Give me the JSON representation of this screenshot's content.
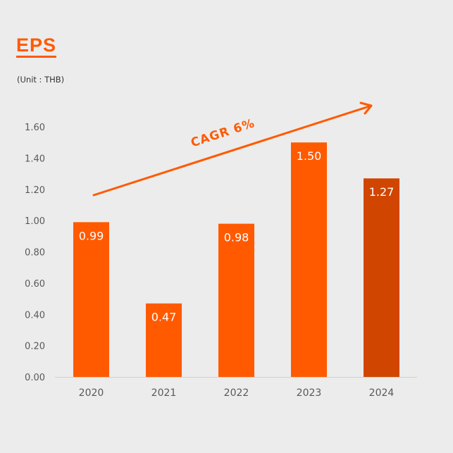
{
  "header": {
    "title": "EPS",
    "unit": "(Unit : THB)"
  },
  "annotation": {
    "text": "CAGR 6%"
  },
  "colors": {
    "bar": "#ff5a00",
    "bar_highlight": "#d04600",
    "axis_text": "#595959",
    "accent": "#ff5a00"
  },
  "chart_data": {
    "type": "bar",
    "title": "EPS",
    "subtitle": "(Unit : THB)",
    "xlabel": "",
    "ylabel": "",
    "categories": [
      "2020",
      "2021",
      "2022",
      "2023",
      "2024"
    ],
    "values": [
      0.99,
      0.47,
      0.98,
      1.5,
      1.27
    ],
    "value_labels": [
      "0.99",
      "0.47",
      "0.98",
      "1.50",
      "1.27"
    ],
    "ylim": [
      0,
      1.6
    ],
    "yticks": [
      "0.00",
      "0.20",
      "0.40",
      "0.60",
      "0.80",
      "1.00",
      "1.20",
      "1.40",
      "1.60"
    ],
    "ytick_values": [
      0,
      0.2,
      0.4,
      0.6,
      0.8,
      1.0,
      1.2,
      1.4,
      1.6
    ],
    "grid": false,
    "highlight_index": 4,
    "annotations": [
      "CAGR 6%"
    ]
  }
}
